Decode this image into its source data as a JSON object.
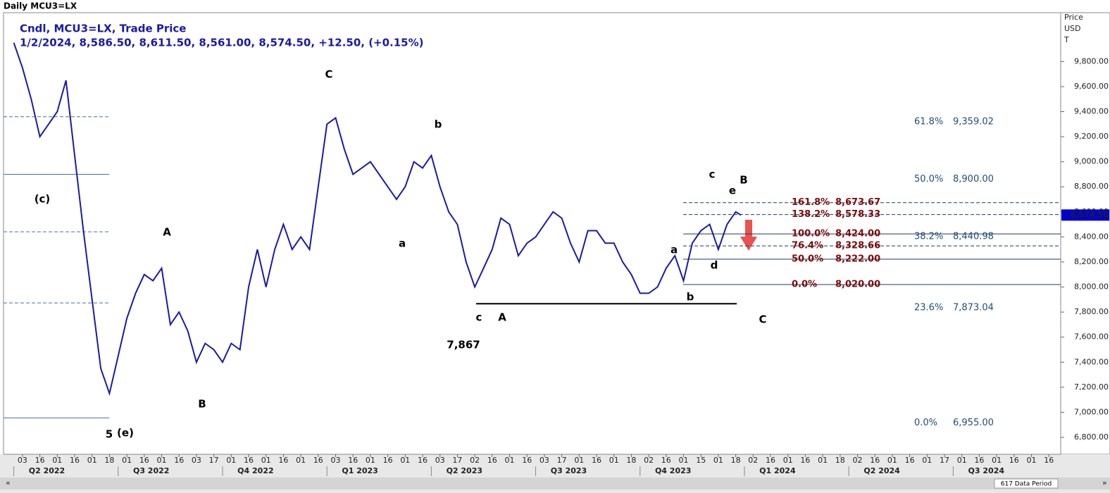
{
  "chart_data": {
    "type": "line",
    "title": "Daily MCU3=LX",
    "legend_title": "Cndl, MCU3=LX, Trade Price",
    "legend_values": "1/2/2024, 8,586.50, 8,611.50, 8,561.00, 8,574.50, +12.50, (+0.15%)",
    "y_axis_label": [
      "Price",
      "USD",
      "T"
    ],
    "footer": "617 Data Period",
    "xlim": [
      -1.09,
      59.68
    ],
    "ylim": [
      6665,
      10190
    ],
    "yticks": [
      {
        "value": 6800,
        "label": "6,800.00"
      },
      {
        "value": 7000,
        "label": "7,000.00"
      },
      {
        "value": 7200,
        "label": "7,200.00"
      },
      {
        "value": 7400,
        "label": "7,400.00"
      },
      {
        "value": 7600,
        "label": "7,600.00"
      },
      {
        "value": 7800,
        "label": "7,800.00"
      },
      {
        "value": 8000,
        "label": "8,000.00"
      },
      {
        "value": 8200,
        "label": "8,200.00"
      },
      {
        "value": 8400,
        "label": "8,400.00"
      },
      {
        "value": 8600,
        "label": "8,600.00"
      },
      {
        "value": 8800,
        "label": "8,800.00"
      },
      {
        "value": 9000,
        "label": "9,000.00"
      },
      {
        "value": 9200,
        "label": "9,200.00"
      },
      {
        "value": 9400,
        "label": "9,400.00"
      },
      {
        "value": 9600,
        "label": "9,600.00"
      },
      {
        "value": 9800,
        "label": "9,800.00"
      }
    ],
    "xtick_labels": [
      "03",
      "16",
      "01",
      "16",
      "01",
      "18",
      "01",
      "16",
      "01",
      "16",
      "03",
      "17",
      "01",
      "16",
      "01",
      "16",
      "01",
      "16",
      "03",
      "16",
      "01",
      "16",
      "01",
      "16",
      "03",
      "17",
      "02",
      "16",
      "01",
      "16",
      "03",
      "17",
      "01",
      "16",
      "01",
      "18",
      "02",
      "16",
      "01",
      "15",
      "01",
      "18",
      "02",
      "16",
      "01",
      "16",
      "01",
      "18",
      "02",
      "16",
      "01",
      "16",
      "01",
      "17",
      "01",
      "16",
      "01",
      "16",
      "01",
      "16"
    ],
    "quarters": [
      "Q2 2022",
      "Q3 2022",
      "Q4 2022",
      "Q1 2023",
      "Q2 2023",
      "Q3 2023",
      "Q4 2023",
      "Q1 2024",
      "Q2 2024",
      "Q3 2024"
    ],
    "x": [
      -0.5,
      0,
      0.5,
      1,
      1.5,
      2,
      2.5,
      3,
      3.5,
      4,
      4.5,
      5,
      5.5,
      6,
      6.5,
      7,
      7.5,
      8,
      8.5,
      9,
      9.5,
      10,
      10.5,
      11,
      11.5,
      12,
      12.5,
      13,
      13.5,
      14,
      14.5,
      15,
      15.5,
      16,
      16.5,
      17,
      17.5,
      18,
      18.5,
      19,
      19.5,
      20,
      20.5,
      21,
      21.5,
      22,
      22.5,
      23,
      23.5,
      24,
      24.5,
      25,
      25.5,
      26,
      26.5,
      27,
      27.5,
      28,
      28.5,
      29,
      29.5,
      30,
      30.5,
      31,
      31.5,
      32,
      32.5,
      33,
      33.5,
      34,
      34.5,
      35,
      35.5,
      36,
      36.5,
      37,
      37.5,
      38,
      38.5,
      39,
      39.5,
      40,
      40.5,
      41,
      41.3
    ],
    "series": [
      {
        "name": "MCU3=LX",
        "color": "#1a1aa6",
        "values": [
          9950,
          9750,
          9500,
          9200,
          9300,
          9400,
          9650,
          9050,
          8450,
          7900,
          7350,
          7150,
          7450,
          7750,
          7950,
          8100,
          8050,
          8150,
          7700,
          7800,
          7650,
          7400,
          7550,
          7500,
          7400,
          7550,
          7500,
          8000,
          8300,
          8000,
          8300,
          8500,
          8300,
          8400,
          8300,
          8800,
          9300,
          9350,
          9100,
          8900,
          8950,
          9000,
          8900,
          8800,
          8700,
          8800,
          9000,
          8950,
          9050,
          8800,
          8600,
          8500,
          8200,
          8000,
          8150,
          8300,
          8550,
          8500,
          8250,
          8350,
          8400,
          8500,
          8600,
          8550,
          8350,
          8200,
          8450,
          8450,
          8350,
          8350,
          8200,
          8100,
          7950,
          7950,
          8000,
          8150,
          8250,
          8050,
          8350,
          8450,
          8500,
          8300,
          8500,
          8600,
          8574.5
        ]
      }
    ],
    "last_price": {
      "value": 8574.5,
      "label": "8,574.50"
    },
    "support": {
      "value": 7867,
      "label": "7,867"
    },
    "fib_left": [
      {
        "pct": "61.8%",
        "value": 9359.02,
        "label": "9,359.02",
        "style": "dashed"
      },
      {
        "pct": "50.0%",
        "value": 8900,
        "label": "8,900.00",
        "style": "solid"
      },
      {
        "pct": "38.2%",
        "value": 8440.98,
        "label": "8,440.98",
        "style": "dashed"
      },
      {
        "pct": "23.6%",
        "value": 7873.04,
        "label": "7,873.04",
        "style": "dashed"
      },
      {
        "pct": "0.0%",
        "value": 6955,
        "label": "6,955.00",
        "style": "solid"
      }
    ],
    "fib_right": [
      {
        "pct": "161.8%",
        "value": 8673.67,
        "label": "8,673.67",
        "style": "dashed"
      },
      {
        "pct": "138.2%",
        "value": 8578.33,
        "label": "8,578.33",
        "style": "dashed"
      },
      {
        "pct": "100.0%",
        "value": 8424,
        "label": "8,424.00",
        "style": "solid"
      },
      {
        "pct": "76.4%",
        "value": 8328.66,
        "label": "8,328.66",
        "style": "dashed"
      },
      {
        "pct": "50.0%",
        "value": 8222,
        "label": "8,222.00",
        "style": "solid"
      },
      {
        "pct": "0.0%",
        "value": 8020,
        "label": "8,020.00",
        "style": "solid"
      }
    ],
    "waves": [
      "(c)",
      "5",
      "(e)",
      "A",
      "B",
      "C",
      "b",
      "a",
      "c",
      "A",
      "a",
      "b",
      "c",
      "d",
      "e",
      "B",
      "C"
    ]
  }
}
